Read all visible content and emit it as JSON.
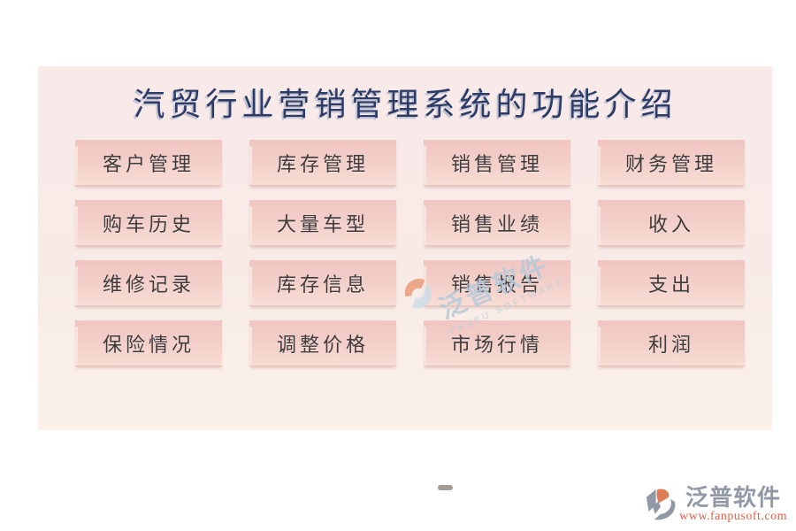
{
  "title": "汽贸行业营销管理系统的功能介绍",
  "grid": {
    "rows": [
      [
        "客户管理",
        "库存管理",
        "销售管理",
        "财务管理"
      ],
      [
        "购车历史",
        "大量车型",
        "销售业绩",
        "收入"
      ],
      [
        "维修记录",
        "库存信息",
        "销售报告",
        "支出"
      ],
      [
        "保险情况",
        "调整价格",
        "市场行情",
        "利润"
      ]
    ]
  },
  "watermark": {
    "brand": "泛普软件",
    "brand_en": "FANPU SOFTWARE"
  },
  "footer": {
    "brand": "泛普软件",
    "url": "www.fanpusoft.com"
  },
  "colors": {
    "title_text": "#2c3c66",
    "panel_top": "#f8eae9",
    "panel_bottom": "#fbf1e8",
    "button_top": "#f0c5c2",
    "button_bottom": "#f7ddd5",
    "button_text": "#3d3b3c",
    "watermark_text": "#b7cada",
    "footer_brand_text": "#9199a6",
    "footer_url_text": "#df6247",
    "logo_orange": "#df7b55",
    "logo_gray": "#9199a6"
  }
}
